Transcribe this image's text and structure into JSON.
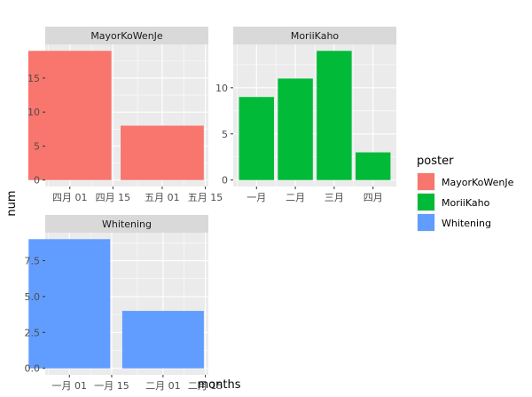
{
  "chart_data": {
    "type": "bar",
    "xlabel": "months",
    "ylabel": "num",
    "legend": {
      "title": "poster",
      "placement": "right",
      "entries": [
        {
          "name": "MayorKoWenJe",
          "color": "#F8766D"
        },
        {
          "name": "MoriiKaho",
          "color": "#00BA38"
        },
        {
          "name": "Whitening",
          "color": "#619CFF"
        }
      ]
    },
    "grid": true,
    "panels": [
      {
        "id": "mayor",
        "title": "MayorKoWenJe",
        "color": "#F8766D",
        "x_axis": "date",
        "xlim": [
          "2017-03-24",
          "2017-05-16"
        ],
        "ylim": [
          -0.95,
          19.95
        ],
        "x_ticks": [
          {
            "value": "2017-04-01",
            "label": "四月 01"
          },
          {
            "value": "2017-04-15",
            "label": "四月 15"
          },
          {
            "value": "2017-05-01",
            "label": "五月 01"
          },
          {
            "value": "2017-05-15",
            "label": "五月 15"
          }
        ],
        "y_ticks": [
          0,
          5,
          10,
          15
        ],
        "bars": [
          {
            "x": "2017-04-01",
            "value": 19
          },
          {
            "x": "2017-05-01",
            "value": 8
          }
        ]
      },
      {
        "id": "morii",
        "title": "MoriiKaho",
        "color": "#00BA38",
        "x_axis": "category",
        "categories": [
          "一月",
          "二月",
          "三月",
          "四月"
        ],
        "ylim": [
          -0.7,
          14.7
        ],
        "y_ticks": [
          0,
          5,
          10
        ],
        "values": [
          9,
          11,
          14,
          3
        ]
      },
      {
        "id": "whitening",
        "title": "Whitening",
        "color": "#619CFF",
        "x_axis": "date",
        "xlim": [
          "2017-12-24",
          "2018-02-16"
        ],
        "ylim": [
          -0.45,
          9.45
        ],
        "x_ticks": [
          {
            "value": "2018-01-01",
            "label": "一月 01"
          },
          {
            "value": "2018-01-15",
            "label": "一月 15"
          },
          {
            "value": "2018-02-01",
            "label": "二月 01"
          },
          {
            "value": "2018-02-15",
            "label": "二月 15"
          }
        ],
        "y_ticks": [
          0.0,
          2.5,
          5.0,
          7.5
        ],
        "bars": [
          {
            "x": "2018-01-01",
            "value": 9
          },
          {
            "x": "2018-02-01",
            "value": 4
          }
        ]
      }
    ]
  }
}
